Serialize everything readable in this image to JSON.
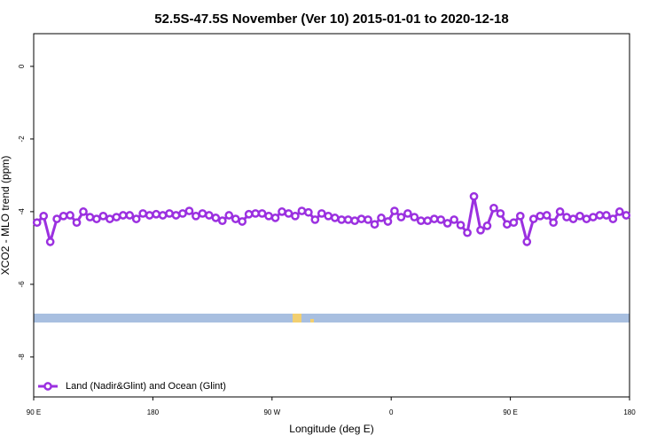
{
  "chart_data": {
    "type": "line",
    "title": "52.5S-47.5S November (Ver 10)   2015-01-01 to 2020-12-18",
    "x_label": "Longitude (deg E)",
    "y_label": "XCO2 - MLO trend (ppm)",
    "xlim": [
      90,
      540
    ],
    "ylim": [
      -9.1,
      0.9
    ],
    "xticks": [
      {
        "value": 90,
        "label": "90 E"
      },
      180,
      {
        "value": 270,
        "label": "90 W"
      },
      {
        "value": 360,
        "label": "0"
      },
      {
        "value": 450,
        "label": "90 E"
      },
      {
        "value": 540,
        "label": "180"
      }
    ],
    "yticks": [
      0,
      -2,
      -4,
      -6,
      -8
    ],
    "legend": "bottomleft",
    "x": [
      92.5,
      97.5,
      102.5,
      107.5,
      112.5,
      117.5,
      122.5,
      127.5,
      132.5,
      137.5,
      142.5,
      147.5,
      152.5,
      157.5,
      162.5,
      167.5,
      172.5,
      177.5,
      182.5,
      187.5,
      192.5,
      197.5,
      202.5,
      207.5,
      212.5,
      217.5,
      222.5,
      227.5,
      232.5,
      237.5,
      242.5,
      247.5,
      252.5,
      257.5,
      262.5,
      267.5,
      272.5,
      277.5,
      282.5,
      287.5,
      292.5,
      297.5,
      302.5,
      307.5,
      312.5,
      317.5,
      322.5,
      327.5,
      332.5,
      337.5,
      342.5,
      347.5,
      352.5,
      357.5,
      362.5,
      367.5,
      372.5,
      377.5,
      382.5,
      387.5,
      392.5,
      397.5,
      402.5,
      407.5,
      412.5,
      417.5,
      422.5,
      427.5,
      432.5,
      437.5,
      442.5,
      447.5,
      452.5,
      457.5,
      462.5,
      467.5,
      472.5,
      477.5,
      482.5,
      487.5,
      492.5,
      497.5,
      502.5,
      507.5,
      512.5,
      517.5,
      522.5,
      527.5,
      532.5,
      537.5
    ],
    "series": [
      {
        "name": "Land (Nadir&Glint) and Ocean (Glint)",
        "color": "#9b30e0",
        "values": [
          -4.3,
          -4.12,
          -4.83,
          -4.2,
          -4.12,
          -4.1,
          -4.3,
          -4.0,
          -4.15,
          -4.2,
          -4.12,
          -4.2,
          -4.15,
          -4.1,
          -4.1,
          -4.2,
          -4.05,
          -4.1,
          -4.07,
          -4.1,
          -4.05,
          -4.1,
          -4.05,
          -3.98,
          -4.12,
          -4.05,
          -4.1,
          -4.17,
          -4.25,
          -4.1,
          -4.2,
          -4.27,
          -4.07,
          -4.05,
          -4.05,
          -4.12,
          -4.17,
          -4.0,
          -4.05,
          -4.12,
          -3.98,
          -4.02,
          -4.22,
          -4.05,
          -4.12,
          -4.17,
          -4.22,
          -4.22,
          -4.25,
          -4.2,
          -4.22,
          -4.35,
          -4.17,
          -4.27,
          -3.98,
          -4.15,
          -4.05,
          -4.15,
          -4.25,
          -4.25,
          -4.2,
          -4.22,
          -4.32,
          -4.22,
          -4.37,
          -4.58,
          -3.58,
          -4.51,
          -4.39,
          -3.9,
          -4.05,
          -4.35,
          -4.3,
          -4.12,
          -4.83,
          -4.2,
          -4.12,
          -4.1,
          -4.3,
          -4.0,
          -4.15,
          -4.2,
          -4.12,
          -4.2,
          -4.15,
          -4.1,
          -4.1,
          -4.2,
          -4.0,
          -4.1
        ]
      }
    ]
  }
}
